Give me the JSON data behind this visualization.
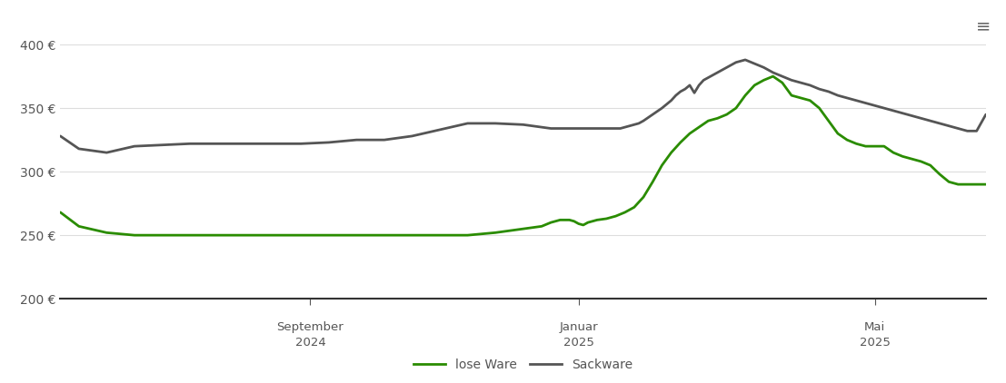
{
  "ymin": 200,
  "ymax": 420,
  "yticks": [
    200,
    250,
    300,
    350,
    400
  ],
  "ytick_labels": [
    "200 €",
    "250 €",
    "300 €",
    "350 €",
    "400 €"
  ],
  "xtick_positions": [
    0.27,
    0.56,
    0.88
  ],
  "xtick_labels_line1": [
    "September",
    "Januar",
    "Mai"
  ],
  "xtick_labels_line2": [
    "2024",
    "2025",
    "2025"
  ],
  "line_green_color": "#2a8c00",
  "line_gray_color": "#555555",
  "background_color": "#ffffff",
  "grid_color": "#dddddd",
  "legend_labels": [
    "lose Ware",
    "Sackware"
  ],
  "lose_ware_x": [
    0.0,
    0.02,
    0.05,
    0.08,
    0.11,
    0.14,
    0.17,
    0.2,
    0.23,
    0.26,
    0.29,
    0.32,
    0.35,
    0.38,
    0.41,
    0.44,
    0.47,
    0.5,
    0.51,
    0.52,
    0.53,
    0.54,
    0.55,
    0.555,
    0.56,
    0.565,
    0.57,
    0.58,
    0.59,
    0.6,
    0.61,
    0.62,
    0.63,
    0.64,
    0.65,
    0.66,
    0.67,
    0.68,
    0.69,
    0.7,
    0.71,
    0.72,
    0.73,
    0.74,
    0.75,
    0.76,
    0.77,
    0.78,
    0.79,
    0.8,
    0.81,
    0.82,
    0.83,
    0.84,
    0.85,
    0.86,
    0.87,
    0.88,
    0.89,
    0.9,
    0.91,
    0.92,
    0.93,
    0.94,
    0.95,
    0.96,
    0.97,
    0.98,
    0.99,
    1.0
  ],
  "lose_ware_y": [
    268,
    257,
    252,
    250,
    250,
    250,
    250,
    250,
    250,
    250,
    250,
    250,
    250,
    250,
    250,
    250,
    252,
    255,
    256,
    257,
    260,
    262,
    262,
    261,
    259,
    258,
    260,
    262,
    263,
    265,
    268,
    272,
    280,
    292,
    305,
    315,
    323,
    330,
    335,
    340,
    342,
    345,
    350,
    360,
    368,
    372,
    375,
    370,
    360,
    358,
    356,
    350,
    340,
    330,
    325,
    322,
    320,
    320,
    320,
    315,
    312,
    310,
    308,
    305,
    298,
    292,
    290,
    290,
    290,
    290
  ],
  "sackware_x": [
    0.0,
    0.02,
    0.05,
    0.08,
    0.11,
    0.14,
    0.17,
    0.2,
    0.23,
    0.26,
    0.29,
    0.32,
    0.35,
    0.38,
    0.41,
    0.44,
    0.47,
    0.5,
    0.51,
    0.52,
    0.53,
    0.54,
    0.55,
    0.56,
    0.57,
    0.58,
    0.59,
    0.6,
    0.605,
    0.61,
    0.615,
    0.62,
    0.625,
    0.63,
    0.64,
    0.65,
    0.66,
    0.665,
    0.67,
    0.675,
    0.68,
    0.685,
    0.69,
    0.695,
    0.7,
    0.71,
    0.72,
    0.73,
    0.74,
    0.75,
    0.76,
    0.77,
    0.78,
    0.79,
    0.8,
    0.81,
    0.82,
    0.83,
    0.84,
    0.85,
    0.86,
    0.87,
    0.88,
    0.89,
    0.9,
    0.91,
    0.92,
    0.93,
    0.94,
    0.95,
    0.96,
    0.97,
    0.98,
    0.99,
    1.0
  ],
  "sackware_y": [
    328,
    318,
    315,
    320,
    321,
    322,
    322,
    322,
    322,
    322,
    323,
    325,
    325,
    328,
    333,
    338,
    338,
    337,
    336,
    335,
    334,
    334,
    334,
    334,
    334,
    334,
    334,
    334,
    334,
    335,
    336,
    337,
    338,
    340,
    345,
    350,
    356,
    360,
    363,
    365,
    368,
    362,
    368,
    372,
    374,
    378,
    382,
    386,
    388,
    385,
    382,
    378,
    375,
    372,
    370,
    368,
    365,
    363,
    360,
    358,
    356,
    354,
    352,
    350,
    348,
    346,
    344,
    342,
    340,
    338,
    336,
    334,
    332,
    332,
    345
  ]
}
